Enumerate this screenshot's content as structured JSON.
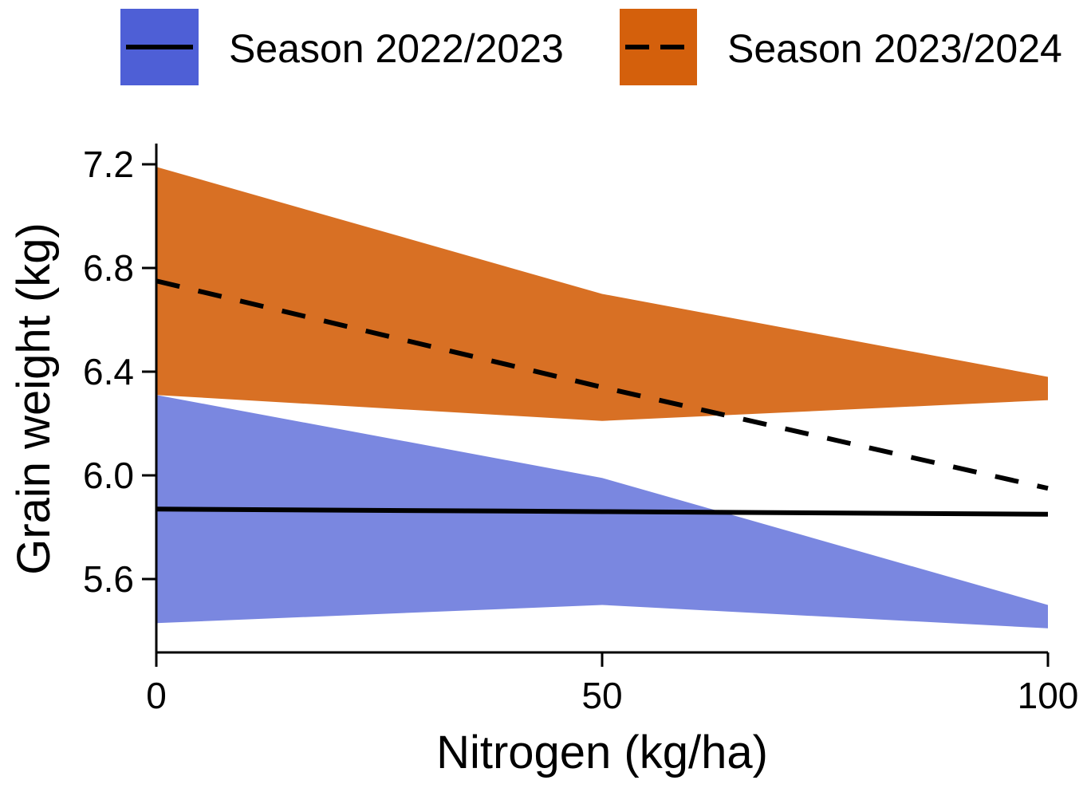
{
  "chart_data": {
    "type": "line",
    "xlabel": "Nitrogen (kg/ha)",
    "ylabel": "Grain weight  (kg)",
    "xlim": [
      0,
      100
    ],
    "ylim": [
      5.3,
      7.28
    ],
    "x_ticks": [
      "0",
      "50",
      "100"
    ],
    "y_ticks": [
      "5.6",
      "6.0",
      "6.4",
      "6.8",
      "7.2"
    ],
    "x": [
      0,
      50,
      100
    ],
    "legend_position": "top",
    "series": [
      {
        "name": "Season 2022/2023",
        "line_style": "solid",
        "fill_color": "#4e5fd6",
        "line_color": "#000000",
        "values": [
          5.87,
          5.86,
          5.85
        ],
        "lower": [
          5.43,
          5.5,
          5.41
        ],
        "upper": [
          6.31,
          5.99,
          5.5
        ]
      },
      {
        "name": "Season 2023/2024",
        "line_style": "dashed",
        "fill_color": "#d4600c",
        "line_color": "#000000",
        "values": [
          6.75,
          6.34,
          5.95
        ],
        "lower": [
          6.31,
          6.21,
          6.29
        ],
        "upper": [
          7.19,
          6.7,
          6.38
        ]
      }
    ]
  }
}
